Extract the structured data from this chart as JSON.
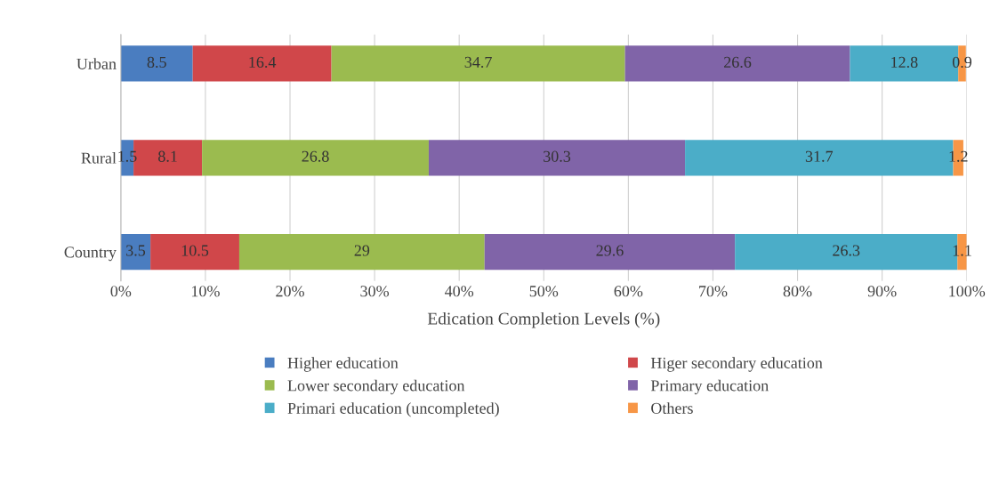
{
  "chart_data": {
    "type": "bar",
    "orientation": "horizontal",
    "stacked": true,
    "data_labels": true,
    "xlabel": "Edication Completion Levels (%)",
    "categories": [
      "Urban",
      "Rural",
      "Country"
    ],
    "series": [
      {
        "name": "Higher education",
        "color": "#4a7dc0",
        "values": [
          8.5,
          1.5,
          3.5
        ]
      },
      {
        "name": "Higer secondary education",
        "color": "#d0474a",
        "values": [
          16.4,
          8.1,
          10.5
        ]
      },
      {
        "name": "Lower secondary education",
        "color": "#9bbb4f",
        "values": [
          34.7,
          26.8,
          29
        ]
      },
      {
        "name": "Primary education",
        "color": "#8064a8",
        "values": [
          26.6,
          30.3,
          29.6
        ]
      },
      {
        "name": "Primari education (uncompleted)",
        "color": "#4badc8",
        "values": [
          12.8,
          31.7,
          26.3
        ]
      },
      {
        "name": "Others",
        "color": "#f79646",
        "values": [
          0.9,
          1.2,
          1.1
        ]
      }
    ],
    "xlim": [
      0,
      100
    ],
    "xticks": [
      {
        "value": 0,
        "label": "0%"
      },
      {
        "value": 10,
        "label": "10%"
      },
      {
        "value": 20,
        "label": "20%"
      },
      {
        "value": 30,
        "label": "30%"
      },
      {
        "value": 40,
        "label": "40%"
      },
      {
        "value": 50,
        "label": "50%"
      },
      {
        "value": 60,
        "label": "60%"
      },
      {
        "value": 70,
        "label": "70%"
      },
      {
        "value": 80,
        "label": "80%"
      },
      {
        "value": 90,
        "label": "90%"
      },
      {
        "value": 100,
        "label": "100%"
      }
    ],
    "grid": "x",
    "legend": "bottom"
  }
}
